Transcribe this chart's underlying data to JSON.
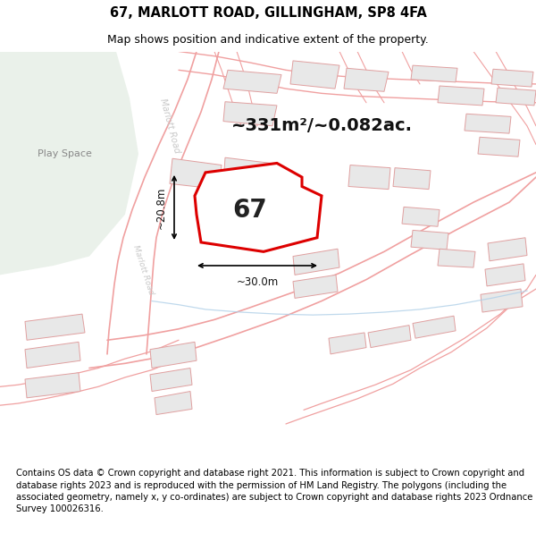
{
  "title": "67, MARLOTT ROAD, GILLINGHAM, SP8 4FA",
  "subtitle": "Map shows position and indicative extent of the property.",
  "footer": "Contains OS data © Crown copyright and database right 2021. This information is subject to Crown copyright and database rights 2023 and is reproduced with the permission of HM Land Registry. The polygons (including the associated geometry, namely x, y co-ordinates) are subject to Crown copyright and database rights 2023 Ordnance Survey 100026316.",
  "area_text": "~331m²/~0.082ac.",
  "width_text": "~30.0m",
  "height_text": "~20.8m",
  "number_text": "67",
  "background_color": "#ffffff",
  "road_color": "#f0a0a0",
  "road_fill": "#ffffff",
  "building_fill": "#e8e8e8",
  "building_edge": "#e0a0a0",
  "highlight_color": "#dd0000",
  "highlight_fill": "#ffffff",
  "green_fill": "#e8f0e8",
  "blue_line": "#b0d0e8",
  "label_color": "#c8c8c8",
  "title_fontsize": 10.5,
  "subtitle_fontsize": 9,
  "footer_fontsize": 7.2,
  "number_fontsize": 20,
  "area_fontsize": 14,
  "dim_fontsize": 8.5,
  "playspace_fontsize": 8
}
